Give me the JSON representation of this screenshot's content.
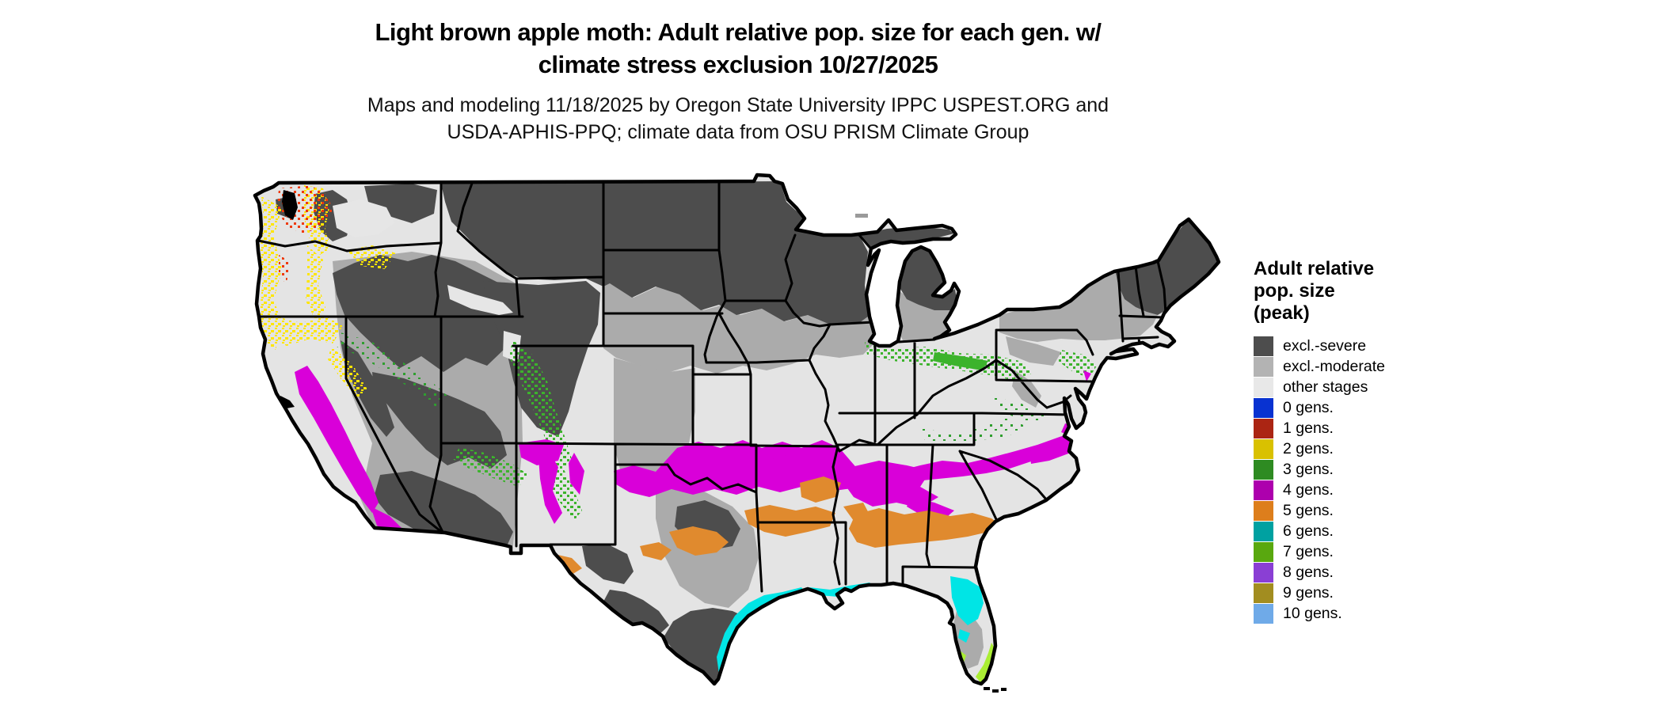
{
  "title": {
    "line1": "Light brown apple moth: Adult relative pop. size for each gen. w/",
    "line2": "climate stress exclusion 10/27/2025"
  },
  "subtitle": {
    "line1": "Maps and modeling 11/18/2025 by Oregon State University IPPC USPEST.ORG and",
    "line2": "USDA-APHIS-PPQ; climate data from OSU PRISM Climate Group"
  },
  "legend": {
    "title_line1": "Adult relative",
    "title_line2": "pop. size",
    "title_line3": "(peak)",
    "entries": [
      {
        "label": "excl.-severe",
        "color": "#4d4d4d"
      },
      {
        "label": "excl.-moderate",
        "color": "#b3b3b3"
      },
      {
        "label": "other stages",
        "color": "#e8e8e8"
      },
      {
        "label": "0 gens.",
        "color": "#0832d1"
      },
      {
        "label": "1 gens.",
        "color": "#ab2513"
      },
      {
        "label": "2 gens.",
        "color": "#d9c100"
      },
      {
        "label": "3 gens.",
        "color": "#2e8b22"
      },
      {
        "label": "4 gens.",
        "color": "#ad00ad"
      },
      {
        "label": "5 gens.",
        "color": "#dd7e1c"
      },
      {
        "label": "6 gens.",
        "color": "#00a1a1"
      },
      {
        "label": "7 gens.",
        "color": "#59a80f"
      },
      {
        "label": "8 gens.",
        "color": "#8a3fd4"
      },
      {
        "label": "9 gens.",
        "color": "#a28d20"
      },
      {
        "label": "10 gens.",
        "color": "#6faae8"
      }
    ]
  },
  "map": {
    "region": "Contiguous United States",
    "palette": {
      "land_base": "#e4e4e4",
      "excl_severe": "#4d4d4d",
      "excl_moderate": "#ababab",
      "valley_light": "#e6e6e6",
      "gen1_red": "#ee3a0c",
      "gen2_yellow": "#ffe600",
      "gen3_green": "#3cb32c",
      "gen3_green_dark": "#2f9e2f",
      "gen4_magenta": "#d900d9",
      "gen5_orange": "#e08a2e",
      "gen6_cyan": "#00e5e5",
      "gen7_greenyellow": "#aaee33",
      "water": "#000000",
      "border": "#000000",
      "island_gray": "#9a9a9a"
    }
  }
}
